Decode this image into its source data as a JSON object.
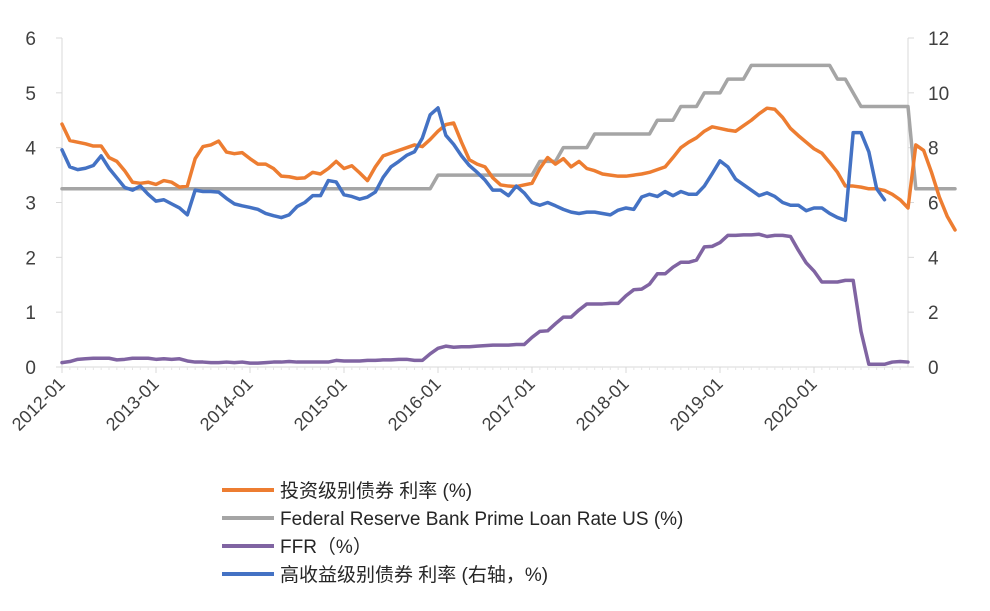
{
  "chart_data": {
    "type": "line",
    "title": "",
    "x_tick_labels": [
      "2012-01",
      "2013-01",
      "2014-01",
      "2015-01",
      "2016-01",
      "2017-01",
      "2018-01",
      "2019-01",
      "2020-01"
    ],
    "y_left": {
      "min": 0,
      "max": 6,
      "ticks": [
        "0",
        "1",
        "2",
        "3",
        "4",
        "5",
        "6"
      ]
    },
    "y_right": {
      "min": 0,
      "max": 12,
      "ticks": [
        "0",
        "2",
        "4",
        "6",
        "8",
        "10",
        "12"
      ]
    },
    "legend_position": "bottom",
    "series": [
      {
        "name": "投资级别债券 利率 (%)",
        "axis": "left",
        "color": "#ED7D31",
        "values": [
          4.43,
          4.13,
          4.1,
          4.07,
          4.03,
          4.03,
          3.82,
          3.75,
          3.58,
          3.37,
          3.35,
          3.37,
          3.33,
          3.4,
          3.37,
          3.28,
          3.3,
          3.8,
          4.02,
          4.05,
          4.12,
          3.92,
          3.89,
          3.91,
          3.8,
          3.7,
          3.7,
          3.62,
          3.48,
          3.47,
          3.44,
          3.45,
          3.55,
          3.52,
          3.62,
          3.75,
          3.62,
          3.67,
          3.54,
          3.4,
          3.65,
          3.85,
          3.9,
          3.95,
          4.0,
          4.05,
          4.02,
          4.15,
          4.3,
          4.42,
          4.45,
          4.1,
          3.78,
          3.7,
          3.65,
          3.45,
          3.32,
          3.3,
          3.29,
          3.32,
          3.35,
          3.62,
          3.82,
          3.7,
          3.8,
          3.65,
          3.75,
          3.62,
          3.58,
          3.52,
          3.5,
          3.48,
          3.48,
          3.5,
          3.52,
          3.55,
          3.6,
          3.65,
          3.82,
          4.0,
          4.1,
          4.18,
          4.3,
          4.38,
          4.35,
          4.32,
          4.3,
          4.4,
          4.5,
          4.62,
          4.72,
          4.7,
          4.55,
          4.35,
          4.22,
          4.1,
          3.98,
          3.9,
          3.73,
          3.55,
          3.3,
          3.3,
          3.28,
          3.25,
          3.25,
          3.22,
          3.15,
          3.05,
          2.9,
          4.05,
          3.95,
          3.55,
          3.1,
          2.75,
          2.5
        ]
      },
      {
        "name": "Federal Reserve Bank Prime Loan Rate US (%)",
        "axis": "left",
        "color": "#A5A5A5",
        "values": [
          3.25,
          3.25,
          3.25,
          3.25,
          3.25,
          3.25,
          3.25,
          3.25,
          3.25,
          3.25,
          3.25,
          3.25,
          3.25,
          3.25,
          3.25,
          3.25,
          3.25,
          3.25,
          3.25,
          3.25,
          3.25,
          3.25,
          3.25,
          3.25,
          3.25,
          3.25,
          3.25,
          3.25,
          3.25,
          3.25,
          3.25,
          3.25,
          3.25,
          3.25,
          3.25,
          3.25,
          3.25,
          3.25,
          3.25,
          3.25,
          3.25,
          3.25,
          3.25,
          3.25,
          3.25,
          3.25,
          3.25,
          3.25,
          3.5,
          3.5,
          3.5,
          3.5,
          3.5,
          3.5,
          3.5,
          3.5,
          3.5,
          3.5,
          3.5,
          3.5,
          3.5,
          3.75,
          3.75,
          3.75,
          4.0,
          4.0,
          4.0,
          4.0,
          4.25,
          4.25,
          4.25,
          4.25,
          4.25,
          4.25,
          4.25,
          4.25,
          4.5,
          4.5,
          4.5,
          4.75,
          4.75,
          4.75,
          5.0,
          5.0,
          5.0,
          5.25,
          5.25,
          5.25,
          5.5,
          5.5,
          5.5,
          5.5,
          5.5,
          5.5,
          5.5,
          5.5,
          5.5,
          5.5,
          5.5,
          5.25,
          5.25,
          5.0,
          4.75,
          4.75,
          4.75,
          4.75,
          4.75,
          4.75,
          4.75,
          3.25,
          3.25,
          3.25,
          3.25,
          3.25,
          3.25
        ]
      },
      {
        "name": "FFR（%）",
        "axis": "left",
        "color": "#8064A2",
        "values": [
          0.08,
          0.1,
          0.14,
          0.15,
          0.16,
          0.16,
          0.16,
          0.13,
          0.14,
          0.16,
          0.16,
          0.16,
          0.14,
          0.15,
          0.14,
          0.15,
          0.11,
          0.09,
          0.09,
          0.08,
          0.08,
          0.09,
          0.08,
          0.09,
          0.07,
          0.07,
          0.08,
          0.09,
          0.09,
          0.1,
          0.09,
          0.09,
          0.09,
          0.09,
          0.09,
          0.12,
          0.11,
          0.11,
          0.11,
          0.12,
          0.12,
          0.13,
          0.13,
          0.14,
          0.14,
          0.12,
          0.12,
          0.24,
          0.34,
          0.38,
          0.36,
          0.37,
          0.37,
          0.38,
          0.39,
          0.4,
          0.4,
          0.4,
          0.41,
          0.41,
          0.54,
          0.65,
          0.66,
          0.79,
          0.91,
          0.91,
          1.04,
          1.15,
          1.15,
          1.15,
          1.16,
          1.16,
          1.3,
          1.41,
          1.42,
          1.51,
          1.7,
          1.7,
          1.82,
          1.91,
          1.91,
          1.95,
          2.19,
          2.2,
          2.27,
          2.4,
          2.4,
          2.41,
          2.41,
          2.42,
          2.38,
          2.4,
          2.4,
          2.38,
          2.13,
          1.9,
          1.75,
          1.55,
          1.55,
          1.55,
          1.58,
          1.58,
          0.65,
          0.05,
          0.05,
          0.05,
          0.09,
          0.1,
          0.09
        ]
      },
      {
        "name": "高收益级别债券 利率 (右轴，%)",
        "axis": "right",
        "color": "#4472C4",
        "values": [
          7.92,
          7.3,
          7.2,
          7.25,
          7.35,
          7.7,
          7.25,
          6.9,
          6.55,
          6.45,
          6.6,
          6.3,
          6.05,
          6.1,
          5.95,
          5.8,
          5.55,
          6.45,
          6.4,
          6.4,
          6.38,
          6.15,
          5.95,
          5.88,
          5.82,
          5.75,
          5.6,
          5.52,
          5.45,
          5.55,
          5.85,
          6.0,
          6.25,
          6.25,
          6.8,
          6.75,
          6.28,
          6.22,
          6.12,
          6.2,
          6.38,
          6.92,
          7.3,
          7.5,
          7.72,
          7.85,
          8.35,
          9.2,
          9.45,
          8.45,
          8.12,
          7.7,
          7.35,
          7.1,
          6.82,
          6.45,
          6.45,
          6.25,
          6.6,
          6.35,
          6.0,
          5.9,
          6.0,
          5.88,
          5.75,
          5.65,
          5.6,
          5.65,
          5.65,
          5.6,
          5.55,
          5.72,
          5.8,
          5.75,
          6.2,
          6.3,
          6.22,
          6.4,
          6.25,
          6.4,
          6.3,
          6.3,
          6.6,
          7.05,
          7.52,
          7.3,
          6.85,
          6.65,
          6.45,
          6.25,
          6.35,
          6.22,
          6.0,
          5.9,
          5.9,
          5.7,
          5.8,
          5.8,
          5.6,
          5.45,
          5.35,
          8.55,
          8.55,
          7.85,
          6.5,
          6.1
        ]
      }
    ]
  },
  "legend": {
    "items": [
      {
        "label": "投资级别债券 利率 (%)",
        "color": "#ED7D31"
      },
      {
        "label": "Federal Reserve Bank Prime Loan Rate US  (%)",
        "color": "#A5A5A5"
      },
      {
        "label": "FFR（%）",
        "color": "#8064A2"
      },
      {
        "label": "高收益级别债券 利率 (右轴，%)",
        "color": "#4472C4"
      }
    ]
  }
}
